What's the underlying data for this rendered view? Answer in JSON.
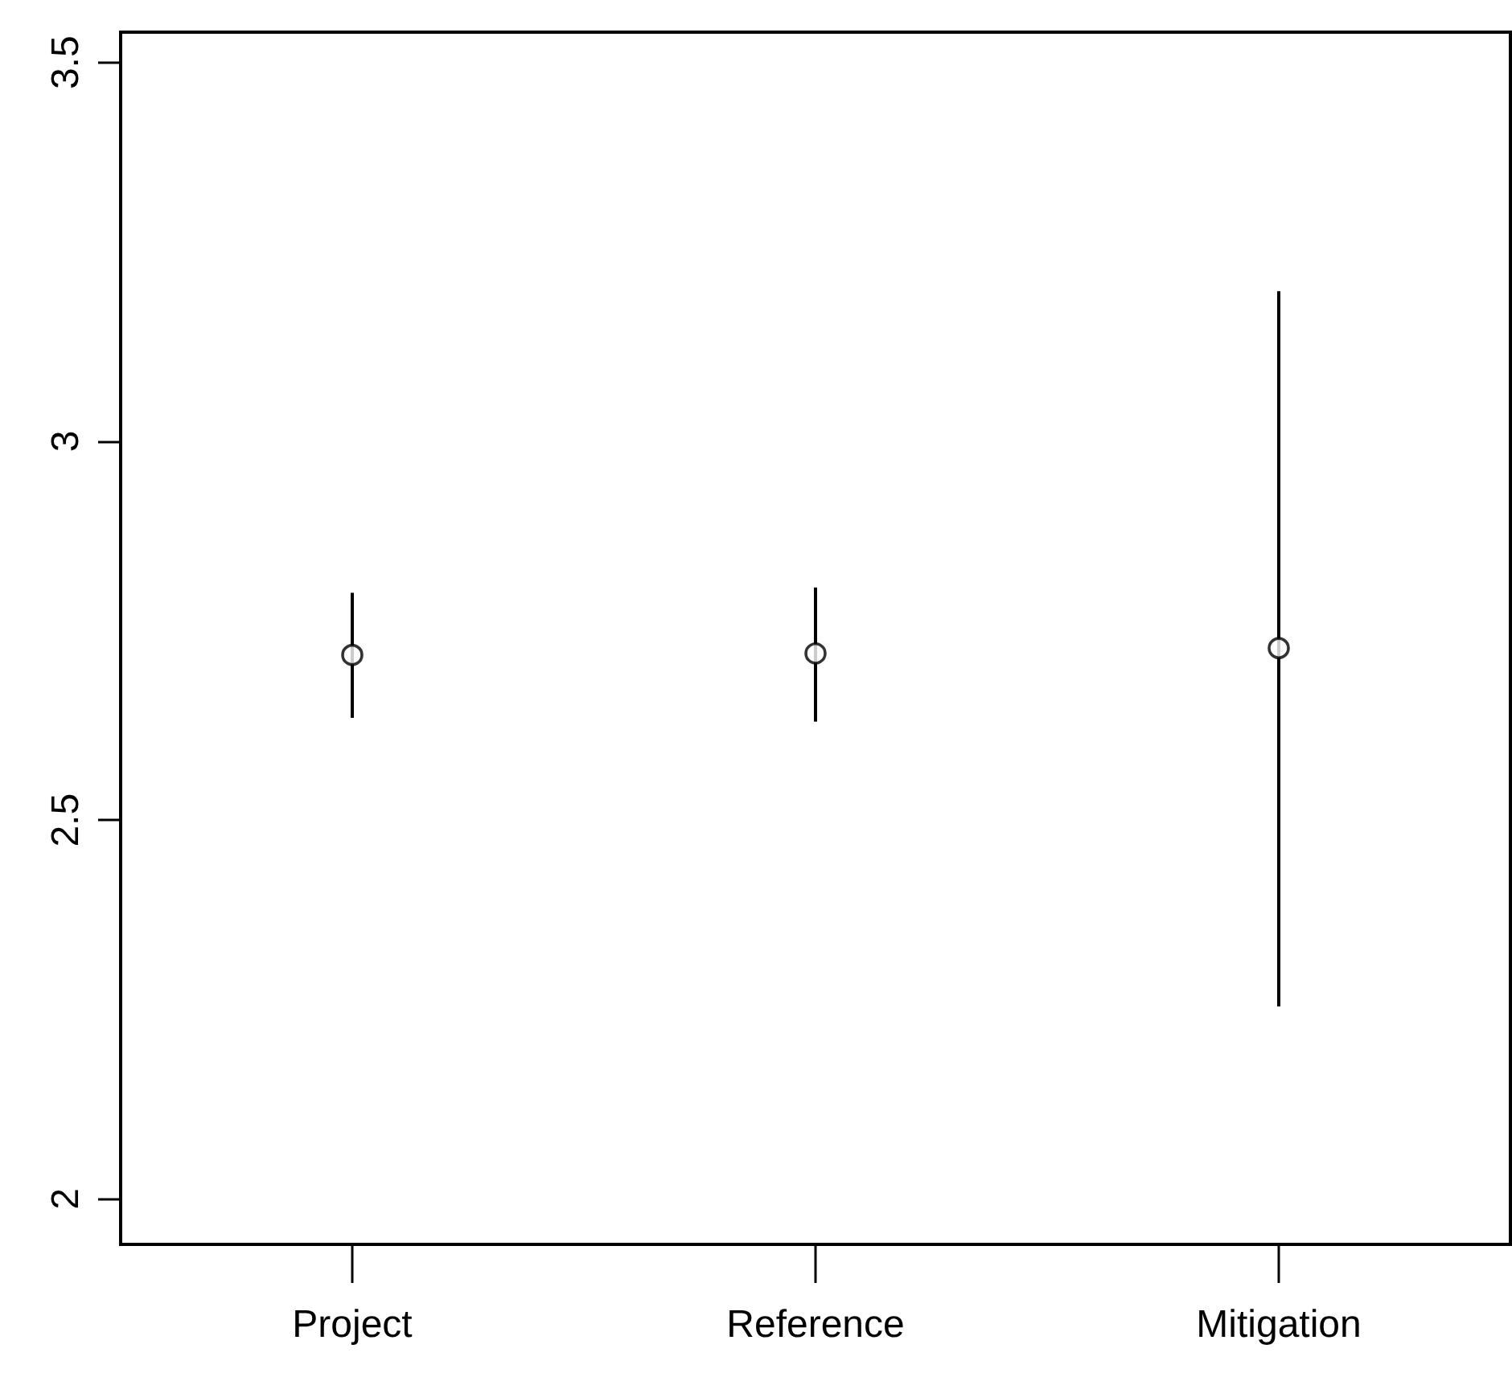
{
  "chart_data": {
    "type": "scatter",
    "categories": [
      "Project",
      "Reference",
      "Mitigation"
    ],
    "values": [
      2.718,
      2.72,
      2.727
    ],
    "errors": [
      [
        2.635,
        2.8
      ],
      [
        2.63,
        2.807
      ],
      [
        2.254,
        3.198
      ]
    ],
    "color": "#000000",
    "marker": "circle",
    "grid": false,
    "ylim": [
      1.94,
      3.54
    ],
    "yticks": [
      2,
      2.5,
      3,
      3.5
    ]
  }
}
